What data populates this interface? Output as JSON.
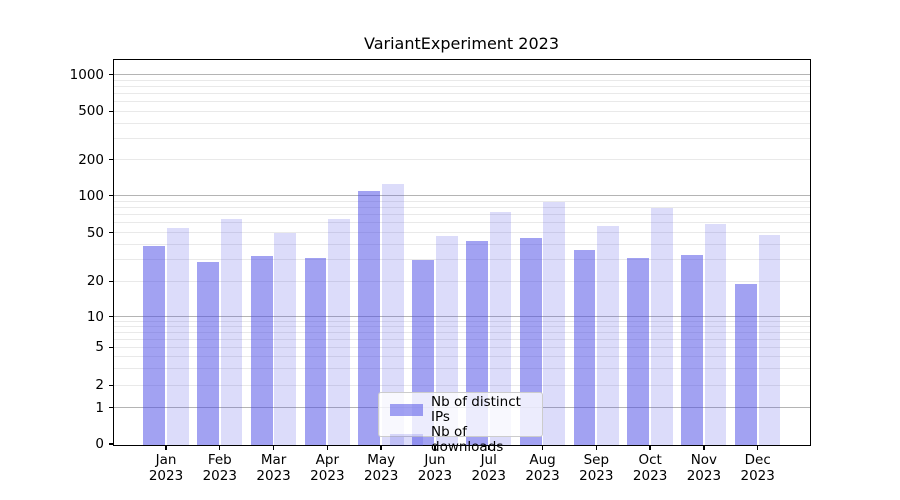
{
  "title": "VariantExperiment 2023",
  "chart_data": {
    "type": "bar",
    "title": "VariantExperiment 2023",
    "categories": [
      "Jan 2023",
      "Feb 2023",
      "Mar 2023",
      "Apr 2023",
      "May 2023",
      "Jun 2023",
      "Jul 2023",
      "Aug 2023",
      "Sep 2023",
      "Oct 2023",
      "Nov 2023",
      "Dec 2023"
    ],
    "x_tick_months": [
      "Jan",
      "Feb",
      "Mar",
      "Apr",
      "May",
      "Jun",
      "Jul",
      "Aug",
      "Sep",
      "Oct",
      "Nov",
      "Dec"
    ],
    "x_tick_year": "2023",
    "series": [
      {
        "name": "Nb of distinct IPs",
        "base_color": "#4646e6",
        "alpha": 0.5,
        "rendered_hex": "#a2a2f2",
        "values": [
          39,
          29,
          32,
          31,
          109,
          30,
          43,
          45,
          36,
          31,
          33,
          19
        ]
      },
      {
        "name": "Nb of downloads",
        "base_color": "#4646e6",
        "alpha": 0.19,
        "rendered_hex": "#dcdcf8",
        "values": [
          55,
          65,
          50,
          65,
          126,
          47,
          74,
          89,
          57,
          80,
          59,
          48
        ]
      }
    ],
    "yscale": "symlog",
    "y_ticks": [
      0,
      1,
      2,
      5,
      10,
      20,
      50,
      100,
      200,
      500,
      1000
    ],
    "ylim": [
      0,
      1320
    ],
    "grid": {
      "enabled": true,
      "major_gridline_values": [
        1,
        10,
        100,
        1000
      ],
      "major_color": "#b4b4b4",
      "minor_color": "#e9e9e9"
    },
    "legend": {
      "position": "lower center",
      "entries": [
        "Nb of distinct IPs",
        "Nb of downloads"
      ]
    }
  },
  "colors": {
    "background": "#ffffff",
    "axis": "#000000",
    "text": "#000000"
  }
}
